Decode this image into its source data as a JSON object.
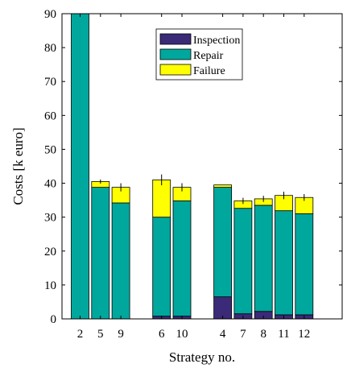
{
  "chart_data": {
    "type": "bar",
    "stacked": true,
    "xlabel": "Strategy no.",
    "ylabel": "Costs [k euro]",
    "ylim": [
      0,
      90
    ],
    "yticks": [
      0,
      10,
      20,
      30,
      40,
      50,
      60,
      70,
      80,
      90
    ],
    "grid": false,
    "legend_position": "top-center",
    "groups": [
      [
        "2",
        "5",
        "9"
      ],
      [
        "6",
        "10"
      ],
      [
        "4",
        "7",
        "8",
        "11",
        "12"
      ]
    ],
    "categories": [
      "2",
      "5",
      "9",
      "6",
      "10",
      "4",
      "7",
      "8",
      "11",
      "12"
    ],
    "series": [
      {
        "name": "Inspection",
        "color": "#3b2a78",
        "values": [
          0,
          0,
          0,
          0.8,
          0.8,
          6.5,
          1.5,
          2.2,
          1.2,
          1.2
        ]
      },
      {
        "name": "Repair",
        "color": "#00a79d",
        "values": [
          90,
          38.8,
          34.2,
          29.2,
          34,
          32.3,
          31.1,
          31.3,
          30.7,
          29.8
        ]
      },
      {
        "name": "Failure",
        "color": "#ffff00",
        "values": [
          0,
          1.7,
          4.6,
          11,
          4,
          0.7,
          2.2,
          1.9,
          4.5,
          4.8
        ]
      }
    ],
    "error_bars": [
      0,
      0.6,
      1.2,
      1.6,
      1.2,
      0,
      0.9,
      0.9,
      1.1,
      1
    ]
  }
}
